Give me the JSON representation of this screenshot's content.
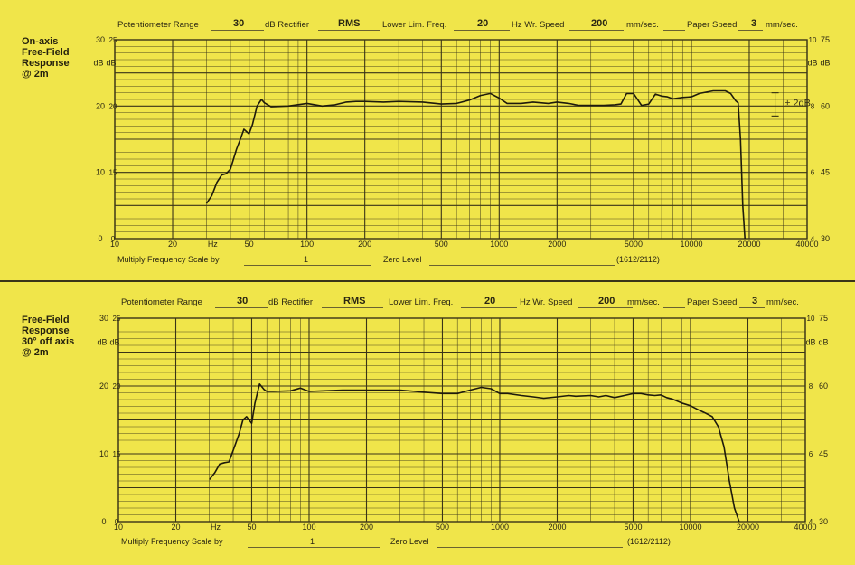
{
  "colors": {
    "paper": "#f0e54a",
    "grid": "#3a3418",
    "trace": "#1e1a0c"
  },
  "header": {
    "pot_range_label": "Potentiometer Range",
    "db_rect_label": "dB Rectifier",
    "lower_lim_label": "Lower Lim. Freq.",
    "hz_wr_label": "Hz Wr. Speed",
    "mm_sec_label": "mm/sec.",
    "paper_speed_label": "Paper Speed",
    "paper_unit_label": "mm/sec."
  },
  "footer": {
    "multiply_label": "Multiply Frequency Scale by",
    "zero_label": "Zero Level",
    "code": "(1612/2112)"
  },
  "axis_labels": {
    "db": "dB",
    "hz": "Hz",
    "freq_ticks": [
      "10",
      "20",
      "50",
      "100",
      "200",
      "500",
      "1000",
      "2000",
      "5000",
      "10000",
      "20000",
      "40000"
    ],
    "left_major": [
      "30",
      "25",
      "20",
      "15",
      "10",
      "5",
      "0"
    ],
    "right_outer": [
      "75",
      "60",
      "45",
      "30"
    ],
    "right_inner": [
      "10",
      "8",
      "6",
      "4"
    ]
  },
  "chart_data": [
    {
      "type": "line",
      "title": "On-axis\nFree-Field\nResponse\n@ 2m",
      "header_values": {
        "potentiometer_range": "30",
        "rectifier": "RMS",
        "lower_lim_freq": "20",
        "writing_speed": "200",
        "paper_speed": "3"
      },
      "multiply_value": "1",
      "annotation": "± 2dB",
      "xscale": "log",
      "xlim": [
        10,
        40000
      ],
      "ylim": [
        0,
        30
      ],
      "xlabel": "Hz",
      "ylabel": "dB",
      "grid": true,
      "x": [
        30,
        32,
        34,
        36,
        38,
        40,
        43,
        45,
        47,
        50,
        52,
        55,
        58,
        60,
        65,
        80,
        100,
        120,
        140,
        160,
        180,
        200,
        250,
        300,
        400,
        500,
        600,
        700,
        800,
        900,
        1000,
        1100,
        1300,
        1500,
        1800,
        2000,
        2300,
        2600,
        3000,
        3500,
        4000,
        4300,
        4600,
        5000,
        5500,
        6000,
        6500,
        7000,
        7500,
        8000,
        9000,
        10000,
        11000,
        12000,
        13000,
        14000,
        15000,
        16000,
        17000,
        17500,
        18000,
        18500,
        19000
      ],
      "y": [
        5.3,
        6.5,
        8.5,
        9.6,
        9.8,
        10.5,
        13.5,
        15,
        16.5,
        15.8,
        17.2,
        20,
        21,
        20.5,
        19.9,
        20,
        20.4,
        20,
        20.2,
        20.6,
        20.7,
        20.7,
        20.6,
        20.7,
        20.6,
        20.3,
        20.4,
        20.9,
        21.6,
        21.9,
        21.2,
        20.4,
        20.4,
        20.6,
        20.4,
        20.6,
        20.4,
        20.1,
        20.1,
        20.1,
        20.2,
        20.3,
        21.9,
        21.9,
        20.1,
        20.3,
        21.8,
        21.5,
        21.4,
        21.1,
        21.3,
        21.4,
        21.9,
        22.1,
        22.3,
        22.3,
        22.3,
        21.9,
        20.8,
        20.5,
        15,
        5,
        0
      ]
    },
    {
      "type": "line",
      "title": "Free-Field\nResponse\n30° off axis\n@ 2m",
      "header_values": {
        "potentiometer_range": "30",
        "rectifier": "RMS",
        "lower_lim_freq": "20",
        "writing_speed": "200",
        "paper_speed": "3"
      },
      "multiply_value": "1",
      "annotation": "",
      "xscale": "log",
      "xlim": [
        10,
        40000
      ],
      "ylim": [
        0,
        30
      ],
      "xlabel": "Hz",
      "ylabel": "dB",
      "grid": true,
      "x": [
        30,
        32,
        34,
        36,
        38,
        40,
        43,
        45,
        47,
        50,
        52,
        55,
        58,
        60,
        65,
        80,
        90,
        100,
        120,
        150,
        200,
        300,
        400,
        500,
        600,
        700,
        800,
        900,
        1000,
        1100,
        1300,
        1500,
        1700,
        2000,
        2300,
        2500,
        3000,
        3300,
        3600,
        4000,
        4500,
        5000,
        5500,
        6000,
        6500,
        7000,
        7500,
        8000,
        9000,
        10000,
        11000,
        12000,
        13000,
        14000,
        15000,
        16000,
        17000,
        18000
      ],
      "y": [
        6.2,
        7.2,
        8.5,
        8.7,
        8.8,
        10.5,
        13,
        15,
        15.5,
        14.5,
        17.5,
        20.3,
        19.5,
        19.2,
        19.2,
        19.3,
        19.7,
        19.2,
        19.3,
        19.4,
        19.4,
        19.4,
        19.1,
        18.9,
        18.9,
        19.4,
        19.8,
        19.6,
        18.9,
        18.9,
        18.6,
        18.4,
        18.2,
        18.4,
        18.6,
        18.5,
        18.6,
        18.4,
        18.6,
        18.3,
        18.6,
        18.9,
        18.9,
        18.7,
        18.6,
        18.7,
        18.3,
        18.1,
        17.5,
        17.1,
        16.5,
        16,
        15.5,
        14,
        11,
        6,
        2,
        0
      ]
    }
  ]
}
